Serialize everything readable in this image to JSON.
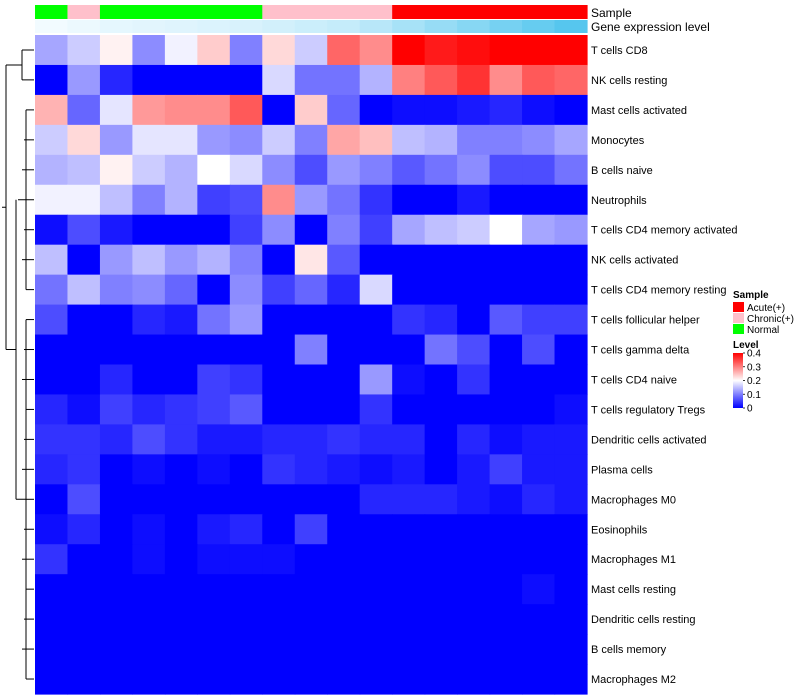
{
  "chart_data": {
    "type": "heatmap",
    "annotation_labels": [
      "Sample",
      "Gene expression level"
    ],
    "sample_legend": {
      "title": "Sample",
      "entries": [
        {
          "name": "Acute(+)",
          "color": "#ff0000"
        },
        {
          "name": "Chronic(+)",
          "color": "#ffc0cb"
        },
        {
          "name": "Normal",
          "color": "#00ff00"
        }
      ]
    },
    "color_legend": {
      "title": "Level",
      "ticks": [
        "0.4",
        "0.3",
        "0.2",
        "0.1",
        "0"
      ],
      "tick_values": [
        0.4,
        0.3,
        0.2,
        0.1,
        0
      ],
      "range": [
        0,
        0.4
      ],
      "colors": {
        "low": "#0000ff",
        "mid": "#ffffff",
        "high": "#ff0000",
        "mid_value": 0.2
      }
    },
    "samples": [
      "Normal",
      "Chronic(+)",
      "Normal",
      "Normal",
      "Normal",
      "Normal",
      "Normal",
      "Chronic(+)",
      "Chronic(+)",
      "Chronic(+)",
      "Chronic(+)",
      "Acute(+)",
      "Acute(+)",
      "Acute(+)",
      "Acute(+)",
      "Acute(+)",
      "Acute(+)"
    ],
    "sample_colors": {
      "Normal": "#00ff00",
      "Chronic(+)": "#ffc0cb",
      "Acute(+)": "#ff0000"
    },
    "expression_level": [
      0.02,
      0.04,
      0.06,
      0.07,
      0.08,
      0.09,
      0.1,
      0.12,
      0.14,
      0.16,
      0.2,
      0.25,
      0.3,
      0.35,
      0.4,
      0.45,
      0.5
    ],
    "expression_colors": {
      "low": "#f2fbff",
      "high": "#56c6ee"
    },
    "rows": [
      "T cells CD8",
      "NK cells resting",
      "Mast cells activated",
      "Monocytes",
      "B cells naive",
      "Neutrophils",
      "T cells CD4 memory activated",
      "NK cells activated",
      "T cells CD4 memory resting",
      "T cells follicular helper",
      "T cells gamma delta",
      "T cells CD4 naive",
      "T cells regulatory  Tregs",
      "Dendritic cells activated",
      "Plasma cells",
      "Macrophages M0",
      "Eosinophils",
      "Macrophages M1",
      "Mast cells resting",
      "Dendritic cells resting",
      "B cells memory",
      "Macrophages M2"
    ],
    "values": [
      [
        0.13,
        0.16,
        0.21,
        0.11,
        0.19,
        0.24,
        0.1,
        0.23,
        0.16,
        0.32,
        0.29,
        0.4,
        0.38,
        0.39,
        0.4,
        0.4,
        0.4
      ],
      [
        0.0,
        0.12,
        0.03,
        0.0,
        0.0,
        0.0,
        0.0,
        0.17,
        0.09,
        0.09,
        0.14,
        0.3,
        0.33,
        0.36,
        0.29,
        0.33,
        0.32
      ],
      [
        0.26,
        0.08,
        0.18,
        0.28,
        0.29,
        0.29,
        0.33,
        0.0,
        0.24,
        0.08,
        0.0,
        0.01,
        0.01,
        0.02,
        0.03,
        0.01,
        0.0
      ],
      [
        0.16,
        0.23,
        0.12,
        0.18,
        0.18,
        0.12,
        0.11,
        0.16,
        0.1,
        0.27,
        0.25,
        0.15,
        0.14,
        0.1,
        0.1,
        0.11,
        0.13
      ],
      [
        0.14,
        0.15,
        0.21,
        0.16,
        0.14,
        0.2,
        0.17,
        0.11,
        0.06,
        0.12,
        0.1,
        0.07,
        0.09,
        0.11,
        0.06,
        0.06,
        0.09
      ],
      [
        0.19,
        0.19,
        0.15,
        0.1,
        0.14,
        0.05,
        0.06,
        0.29,
        0.12,
        0.09,
        0.04,
        0.0,
        0.0,
        0.02,
        0.0,
        0.0,
        0.0
      ],
      [
        0.01,
        0.06,
        0.02,
        0.0,
        0.0,
        0.0,
        0.05,
        0.11,
        0.0,
        0.1,
        0.05,
        0.13,
        0.15,
        0.16,
        0.2,
        0.13,
        0.12
      ],
      [
        0.15,
        0.0,
        0.12,
        0.15,
        0.12,
        0.14,
        0.1,
        0.0,
        0.22,
        0.07,
        0.0,
        0.0,
        0.0,
        0.0,
        0.0,
        0.0,
        0.0
      ],
      [
        0.09,
        0.15,
        0.1,
        0.11,
        0.08,
        0.0,
        0.11,
        0.05,
        0.08,
        0.03,
        0.17,
        0.0,
        0.0,
        0.0,
        0.0,
        0.0,
        0.0
      ],
      [
        0.06,
        0.0,
        0.0,
        0.03,
        0.02,
        0.09,
        0.12,
        0.0,
        0.0,
        0.0,
        0.0,
        0.04,
        0.03,
        0.0,
        0.07,
        0.05,
        0.05
      ],
      [
        0.0,
        0.0,
        0.0,
        0.0,
        0.0,
        0.0,
        0.0,
        0.0,
        0.1,
        0.0,
        0.0,
        0.0,
        0.09,
        0.06,
        0.0,
        0.06,
        0.0
      ],
      [
        0.0,
        0.0,
        0.03,
        0.0,
        0.0,
        0.05,
        0.04,
        0.0,
        0.0,
        0.0,
        0.12,
        0.01,
        0.0,
        0.04,
        0.0,
        0.0,
        0.0
      ],
      [
        0.03,
        0.01,
        0.05,
        0.03,
        0.04,
        0.05,
        0.07,
        0.0,
        0.0,
        0.0,
        0.04,
        0.0,
        0.0,
        0.0,
        0.0,
        0.0,
        0.01
      ],
      [
        0.04,
        0.04,
        0.03,
        0.06,
        0.04,
        0.02,
        0.02,
        0.03,
        0.03,
        0.04,
        0.03,
        0.03,
        0.0,
        0.03,
        0.01,
        0.02,
        0.02
      ],
      [
        0.03,
        0.04,
        0.0,
        0.01,
        0.0,
        0.01,
        0.0,
        0.04,
        0.03,
        0.02,
        0.01,
        0.02,
        0.0,
        0.02,
        0.05,
        0.02,
        0.02
      ],
      [
        0.0,
        0.06,
        0.0,
        0.0,
        0.0,
        0.0,
        0.0,
        0.0,
        0.0,
        0.0,
        0.03,
        0.03,
        0.03,
        0.02,
        0.01,
        0.03,
        0.02
      ],
      [
        0.01,
        0.03,
        0.0,
        0.01,
        0.0,
        0.02,
        0.03,
        0.0,
        0.05,
        0.0,
        0.0,
        0.0,
        0.0,
        0.0,
        0.0,
        0.0,
        0.0
      ],
      [
        0.04,
        0.0,
        0.0,
        0.01,
        0.0,
        0.01,
        0.01,
        0.01,
        0.0,
        0.0,
        0.0,
        0.0,
        0.0,
        0.0,
        0.0,
        0.0,
        0.0
      ],
      [
        0.0,
        0.0,
        0.0,
        0.0,
        0.0,
        0.0,
        0.0,
        0.0,
        0.0,
        0.0,
        0.0,
        0.0,
        0.0,
        0.0,
        0.0,
        0.01,
        0.0
      ],
      [
        0.0,
        0.0,
        0.0,
        0.0,
        0.0,
        0.0,
        0.0,
        0.0,
        0.0,
        0.0,
        0.0,
        0.0,
        0.0,
        0.0,
        0.0,
        0.0,
        0.0
      ],
      [
        0.0,
        0.0,
        0.0,
        0.0,
        0.0,
        0.0,
        0.0,
        0.0,
        0.0,
        0.0,
        0.0,
        0.0,
        0.0,
        0.0,
        0.0,
        0.0,
        0.0
      ],
      [
        0.0,
        0.0,
        0.0,
        0.0,
        0.0,
        0.0,
        0.0,
        0.0,
        0.0,
        0.0,
        0.0,
        0.0,
        0.0,
        0.0,
        0.0,
        0.0,
        0.0
      ]
    ],
    "row_dendrogram": {
      "visible": true,
      "side": "left"
    }
  }
}
